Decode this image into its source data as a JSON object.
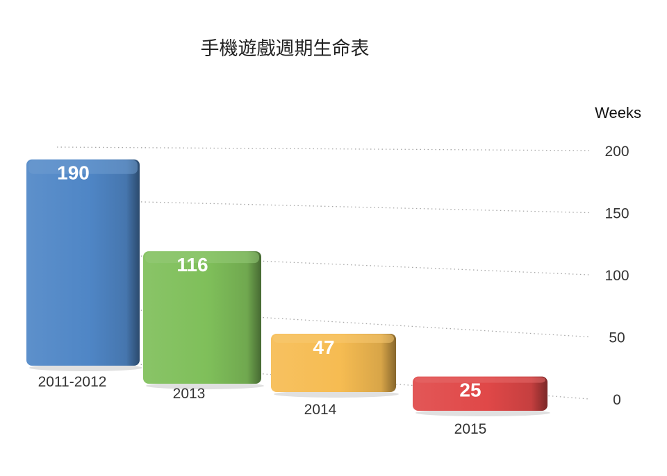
{
  "chart_data": {
    "type": "bar",
    "title": "手機遊戲週期生命表",
    "unit_label": "Weeks",
    "categories": [
      "2011-2012",
      "2013",
      "2014",
      "2015"
    ],
    "values": [
      190,
      116,
      47,
      25
    ],
    "ylim": [
      0,
      200
    ],
    "yticks": [
      0,
      50,
      100,
      150,
      200
    ],
    "colors": [
      "#4f86c6",
      "#7fbf5a",
      "#f6bc52",
      "#e04848"
    ],
    "grid": true,
    "style": "3d-perspective"
  }
}
